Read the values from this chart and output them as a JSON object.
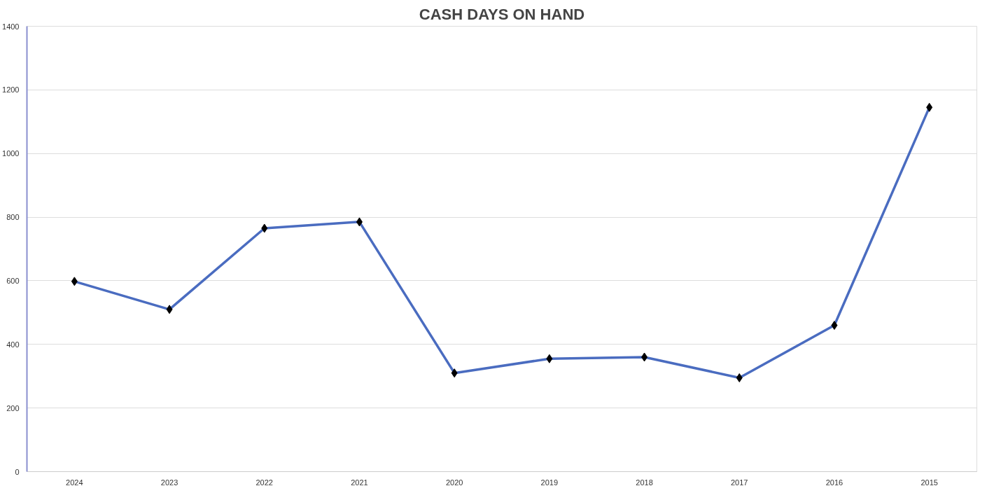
{
  "chart_data": {
    "type": "line",
    "title": "CASH DAYS ON HAND",
    "categories": [
      "2024",
      "2023",
      "2022",
      "2021",
      "2020",
      "2019",
      "2018",
      "2017",
      "2016",
      "2015"
    ],
    "series": [
      {
        "color": "#4a6cc0",
        "values": [
          598,
          510,
          765,
          785,
          310,
          355,
          360,
          295,
          460,
          1145
        ]
      }
    ],
    "ylim": [
      0,
      1400
    ],
    "yticks": [
      0,
      200,
      400,
      600,
      800,
      1000,
      1200,
      1400
    ],
    "grid": "y",
    "marker": "diamond",
    "line_style": "solid"
  }
}
